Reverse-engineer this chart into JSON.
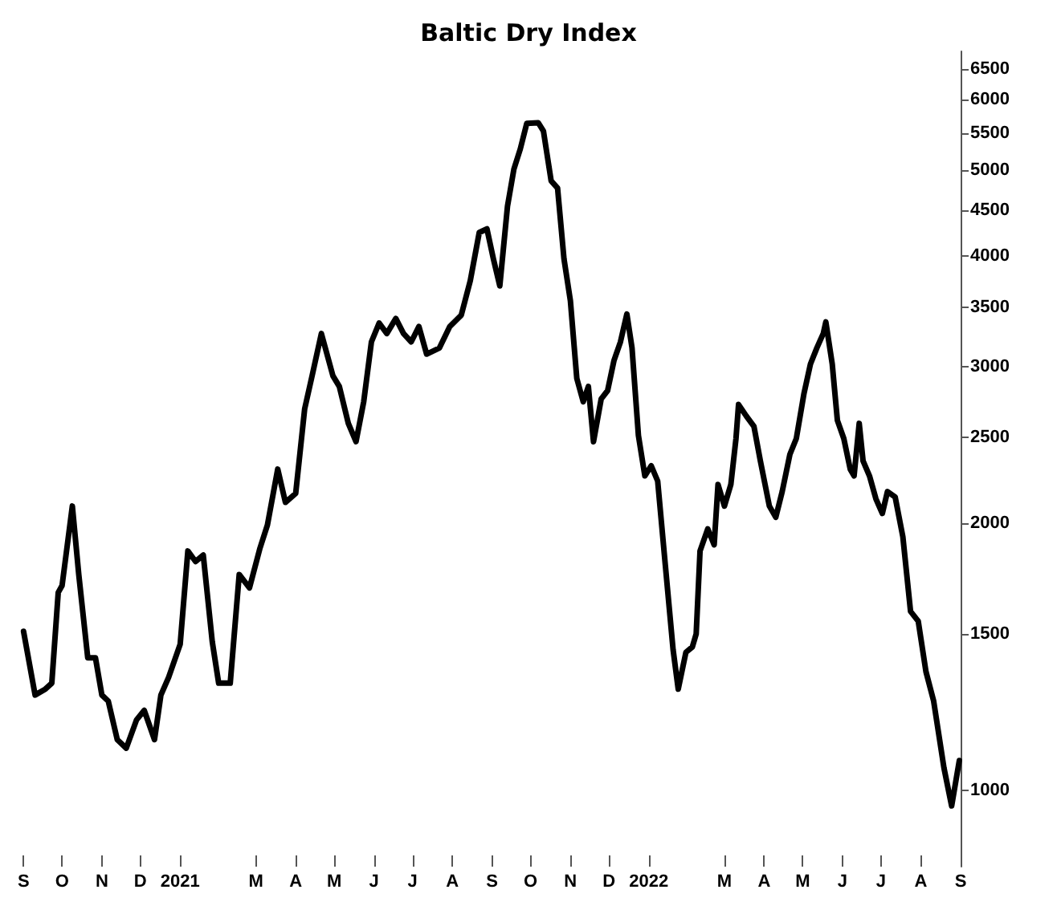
{
  "chart_data": {
    "type": "line",
    "title": "Baltic Dry Index",
    "log": "y",
    "grid": false,
    "marker": "none",
    "line_style": "solid",
    "xlim": [
      "2020-09-01",
      "2022-09-01"
    ],
    "ylim": [
      820,
      6800
    ],
    "xticks": [
      {
        "value": "2020-09-01",
        "label": "S"
      },
      {
        "value": "2020-10-01",
        "label": "O"
      },
      {
        "value": "2020-11-01",
        "label": "N"
      },
      {
        "value": "2020-12-01",
        "label": "D"
      },
      {
        "value": "2021-01-01",
        "label": "2021"
      },
      {
        "value": "2021-03-01",
        "label": "M"
      },
      {
        "value": "2021-04-01",
        "label": "A"
      },
      {
        "value": "2021-05-01",
        "label": "M"
      },
      {
        "value": "2021-06-01",
        "label": "J"
      },
      {
        "value": "2021-07-01",
        "label": "J"
      },
      {
        "value": "2021-08-01",
        "label": "A"
      },
      {
        "value": "2021-09-01",
        "label": "S"
      },
      {
        "value": "2021-10-01",
        "label": "O"
      },
      {
        "value": "2021-11-01",
        "label": "N"
      },
      {
        "value": "2021-12-01",
        "label": "D"
      },
      {
        "value": "2022-01-01",
        "label": "2022"
      },
      {
        "value": "2022-03-01",
        "label": "M"
      },
      {
        "value": "2022-04-01",
        "label": "A"
      },
      {
        "value": "2022-05-01",
        "label": "M"
      },
      {
        "value": "2022-06-01",
        "label": "J"
      },
      {
        "value": "2022-07-01",
        "label": "J"
      },
      {
        "value": "2022-08-01",
        "label": "A"
      },
      {
        "value": "2022-09-01",
        "label": "S"
      }
    ],
    "yticks": [
      1000,
      1500,
      2000,
      2500,
      3000,
      3500,
      4000,
      4500,
      5000,
      5500,
      6000,
      6500
    ],
    "series": [
      {
        "color": "#000000",
        "x": [
          "2020-09-01",
          "2020-09-10",
          "2020-09-18",
          "2020-09-23",
          "2020-09-28",
          "2020-10-01",
          "2020-10-09",
          "2020-10-14",
          "2020-10-21",
          "2020-10-27",
          "2020-11-01",
          "2020-11-06",
          "2020-11-13",
          "2020-11-20",
          "2020-11-28",
          "2020-12-04",
          "2020-12-12",
          "2020-12-17",
          "2020-12-23",
          "2021-01-01",
          "2021-01-07",
          "2021-01-13",
          "2021-01-19",
          "2021-01-26",
          "2021-01-31",
          "2021-02-09",
          "2021-02-16",
          "2021-02-24",
          "2021-03-04",
          "2021-03-10",
          "2021-03-18",
          "2021-03-24",
          "2021-04-01",
          "2021-04-08",
          "2021-04-14",
          "2021-04-21",
          "2021-04-30",
          "2021-05-05",
          "2021-05-12",
          "2021-05-18",
          "2021-05-24",
          "2021-05-30",
          "2021-06-05",
          "2021-06-11",
          "2021-06-18",
          "2021-06-24",
          "2021-06-30",
          "2021-07-06",
          "2021-07-12",
          "2021-07-22",
          "2021-07-30",
          "2021-08-08",
          "2021-08-15",
          "2021-08-22",
          "2021-08-28",
          "2021-09-02",
          "2021-09-07",
          "2021-09-13",
          "2021-09-18",
          "2021-09-23",
          "2021-09-28",
          "2021-10-07",
          "2021-10-11",
          "2021-10-17",
          "2021-10-22",
          "2021-10-27",
          "2021-11-01",
          "2021-11-06",
          "2021-11-11",
          "2021-11-15",
          "2021-11-19",
          "2021-11-25",
          "2021-11-30",
          "2021-12-05",
          "2021-12-10",
          "2021-12-15",
          "2021-12-19",
          "2021-12-24",
          "2021-12-29",
          "2022-01-03",
          "2022-01-08",
          "2022-01-14",
          "2022-01-20",
          "2022-01-24",
          "2022-01-30",
          "2022-02-04",
          "2022-02-07",
          "2022-02-10",
          "2022-02-16",
          "2022-02-21",
          "2022-02-24",
          "2022-03-01",
          "2022-03-06",
          "2022-03-10",
          "2022-03-12",
          "2022-03-18",
          "2022-03-24",
          "2022-03-29",
          "2022-04-05",
          "2022-04-10",
          "2022-04-15",
          "2022-04-21",
          "2022-04-26",
          "2022-05-02",
          "2022-05-07",
          "2022-05-12",
          "2022-05-17",
          "2022-05-19",
          "2022-05-24",
          "2022-05-28",
          "2022-06-02",
          "2022-06-07",
          "2022-06-10",
          "2022-06-14",
          "2022-06-17",
          "2022-06-22",
          "2022-06-27",
          "2022-07-02",
          "2022-07-06",
          "2022-07-12",
          "2022-07-18",
          "2022-07-24",
          "2022-07-30",
          "2022-08-05",
          "2022-08-11",
          "2022-08-19",
          "2022-08-25",
          "2022-08-31"
        ],
        "values": [
          1510,
          1280,
          1300,
          1320,
          1670,
          1700,
          2090,
          1750,
          1410,
          1410,
          1280,
          1260,
          1140,
          1115,
          1200,
          1230,
          1140,
          1280,
          1340,
          1460,
          1860,
          1810,
          1840,
          1470,
          1320,
          1320,
          1750,
          1690,
          1870,
          1990,
          2300,
          2110,
          2160,
          2690,
          2940,
          3270,
          2930,
          2850,
          2590,
          2470,
          2740,
          3200,
          3360,
          3270,
          3400,
          3270,
          3200,
          3330,
          3100,
          3150,
          3330,
          3430,
          3750,
          4250,
          4290,
          3970,
          3700,
          4550,
          5010,
          5280,
          5640,
          5650,
          5530,
          4860,
          4770,
          3970,
          3560,
          2910,
          2740,
          2850,
          2470,
          2760,
          2820,
          3050,
          3200,
          3440,
          3150,
          2510,
          2260,
          2320,
          2230,
          1790,
          1440,
          1300,
          1430,
          1450,
          1500,
          1860,
          1970,
          1890,
          2210,
          2090,
          2210,
          2490,
          2720,
          2640,
          2570,
          2350,
          2090,
          2030,
          2170,
          2390,
          2490,
          2800,
          3020,
          3150,
          3270,
          3370,
          3020,
          2610,
          2490,
          2300,
          2260,
          2590,
          2350,
          2260,
          2130,
          2050,
          2170,
          2140,
          1930,
          1590,
          1550,
          1360,
          1260,
          1060,
          960,
          1080
        ]
      }
    ]
  }
}
